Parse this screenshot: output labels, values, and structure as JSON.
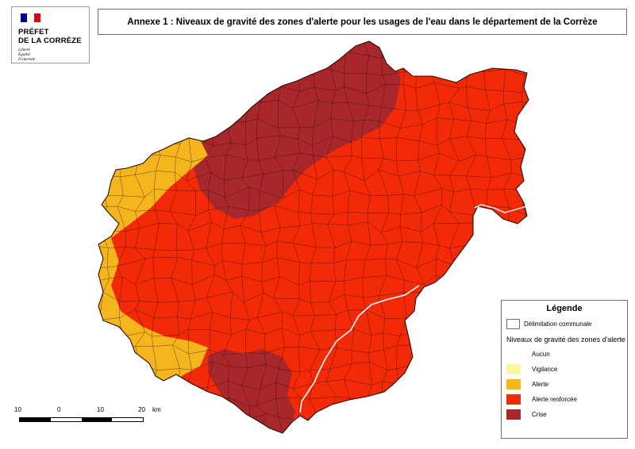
{
  "header": {
    "title": "Annexe 1 : Niveaux de gravité des zones d'alerte pour les usages de l'eau dans le département de la Corrèze"
  },
  "logo": {
    "line1": "PRÉFET",
    "line2": "DE LA CORRÈZE",
    "motto": [
      "Liberté",
      "Égalité",
      "Fraternité"
    ],
    "flag_colors": [
      "#000091",
      "#ffffff",
      "#e1000f"
    ]
  },
  "legend": {
    "title": "Légende",
    "boundary_label": "Délimitation communale",
    "subtitle": "Niveaux de gravité des zones d'alerte",
    "items": [
      {
        "label": "Aucun",
        "color": "#ffffff"
      },
      {
        "label": "Vigilance",
        "color": "#fbf59e"
      },
      {
        "label": "Alerte",
        "color": "#f5b51d"
      },
      {
        "label": "Alerte renforcée",
        "color": "#f22a07"
      },
      {
        "label": "Crise",
        "color": "#a8272a"
      }
    ]
  },
  "scale": {
    "labels": [
      "10",
      "0",
      "10",
      "20"
    ],
    "unit": "km"
  },
  "map": {
    "commune_line_color": "#2a0a04",
    "river_color": "#ffffff"
  }
}
